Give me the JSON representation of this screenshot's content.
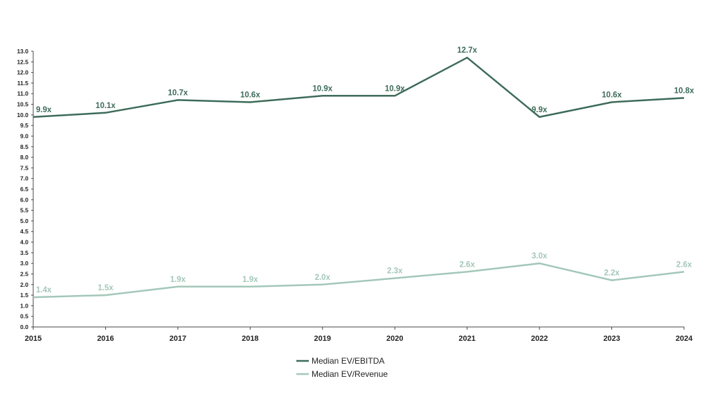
{
  "chart_data": {
    "type": "line",
    "title": "",
    "xlabel": "",
    "ylabel": "",
    "x": [
      "2015",
      "2016",
      "2017",
      "2018",
      "2019",
      "2020",
      "2021",
      "2022",
      "2023",
      "2024"
    ],
    "ylim": [
      0,
      13
    ],
    "y_tick_step": 0.5,
    "grid": false,
    "legend_position": "bottom-center",
    "series": [
      {
        "name": "Median EV/EBITDA",
        "color": "#3d6b59",
        "values": [
          9.9,
          10.1,
          10.7,
          10.6,
          10.9,
          10.9,
          12.7,
          9.9,
          10.6,
          10.8
        ],
        "labels": [
          "9.9x",
          "10.1x",
          "10.7x",
          "10.6x",
          "10.9x",
          "10.9x",
          "12.7x",
          "9.9x",
          "10.6x",
          "10.8x"
        ]
      },
      {
        "name": "Median EV/Revenue",
        "color": "#a3c7b9",
        "values": [
          1.4,
          1.5,
          1.9,
          1.9,
          2.0,
          2.3,
          2.6,
          3.0,
          2.2,
          2.6
        ],
        "labels": [
          "1.4x",
          "1.5x",
          "1.9x",
          "1.9x",
          "2.0x",
          "2.3x",
          "2.6x",
          "3.0x",
          "2.2x",
          "2.6x"
        ]
      }
    ]
  }
}
